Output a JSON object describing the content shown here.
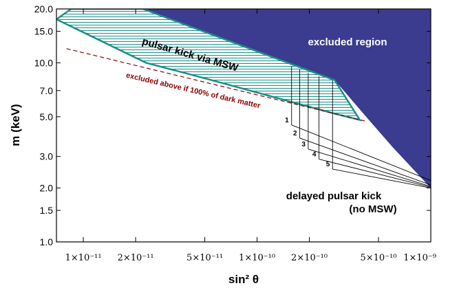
{
  "chart_data": {
    "type": "area",
    "xlabel": "sin² θ",
    "ylabel": "m (keV)",
    "xscale": "log",
    "yscale": "log",
    "xlim": [
      7e-12,
      1e-09
    ],
    "ylim": [
      1.0,
      20.0
    ],
    "xticks": [
      {
        "value": 1e-11,
        "label": "1×10⁻¹¹"
      },
      {
        "value": 2e-11,
        "label": "2×10⁻¹¹"
      },
      {
        "value": 5e-11,
        "label": "5×10⁻¹¹"
      },
      {
        "value": 1e-10,
        "label": "1×10⁻¹⁰"
      },
      {
        "value": 2e-10,
        "label": "2×10⁻¹⁰"
      },
      {
        "value": 5e-10,
        "label": "5×10⁻¹⁰"
      },
      {
        "value": 1e-09,
        "label": "1×10⁻⁹"
      }
    ],
    "yticks": [
      {
        "value": 1.0,
        "label": "1.0"
      },
      {
        "value": 1.5,
        "label": "1.5"
      },
      {
        "value": 2.0,
        "label": "2.0"
      },
      {
        "value": 3.0,
        "label": "3.0"
      },
      {
        "value": 5.0,
        "label": "5.0"
      },
      {
        "value": 7.0,
        "label": "7.0"
      },
      {
        "value": 10.0,
        "label": "10.0"
      },
      {
        "value": 15.0,
        "label": "15.0"
      },
      {
        "value": 20.0,
        "label": "20.0"
      }
    ],
    "regions": [
      {
        "name": "excluded region",
        "color": "#3b3b8f",
        "points": [
          [
            2.2e-11,
            20.0
          ],
          [
            2.8e-10,
            8.0
          ],
          [
            4.4e-10,
            4.8
          ],
          [
            6e-10,
            3.4
          ],
          [
            1e-09,
            2.0
          ],
          [
            1e-09,
            20.0
          ]
        ]
      },
      {
        "name": "pulsar kick via MSW",
        "color": "#1a8f88",
        "points": [
          [
            7e-12,
            17.5
          ],
          [
            8.5e-12,
            20.0
          ],
          [
            2.2e-11,
            20.0
          ],
          [
            2.8e-10,
            8.0
          ],
          [
            3.9e-10,
            4.8
          ],
          [
            2.8e-10,
            5.2
          ],
          [
            5e-11,
            8.2
          ],
          [
            2.3e-11,
            10.0
          ],
          [
            7e-12,
            17.5
          ]
        ]
      }
    ],
    "dashed_line": {
      "name": "excluded above if 100% of dark matter",
      "color": "#8b0000",
      "points": [
        [
          8e-12,
          12.0
        ],
        [
          4.3e-10,
          4.7
        ]
      ]
    },
    "delayed_kick_lines": [
      {
        "label": "1",
        "x": 1.58e-10,
        "y_top": 9.6,
        "y_bottom": 4.5,
        "end_y": 2.2
      },
      {
        "label": "2",
        "x": 1.76e-10,
        "y_top": 9.2,
        "y_bottom": 3.8,
        "end_y": 2.08
      },
      {
        "label": "3",
        "x": 1.97e-10,
        "y_top": 8.8,
        "y_bottom": 3.3,
        "end_y": 2.04
      },
      {
        "label": "4",
        "x": 2.27e-10,
        "y_top": 8.4,
        "y_bottom": 2.9,
        "end_y": 2.02
      },
      {
        "label": "5",
        "x": 2.72e-10,
        "y_top": 8.0,
        "y_bottom": 2.55,
        "end_y": 2.0
      }
    ],
    "annotations": {
      "excluded": "excluded region",
      "msw": "pulsar kick via MSW",
      "dm": "excluded above if 100% of dark matter",
      "delayed_line1": "delayed pulsar kick",
      "delayed_line2": "(no MSW)"
    },
    "colors": {
      "excluded_fill": "#3b3b8f",
      "msw_stroke": "#1a8f88",
      "dm_line": "#8b0000"
    }
  }
}
